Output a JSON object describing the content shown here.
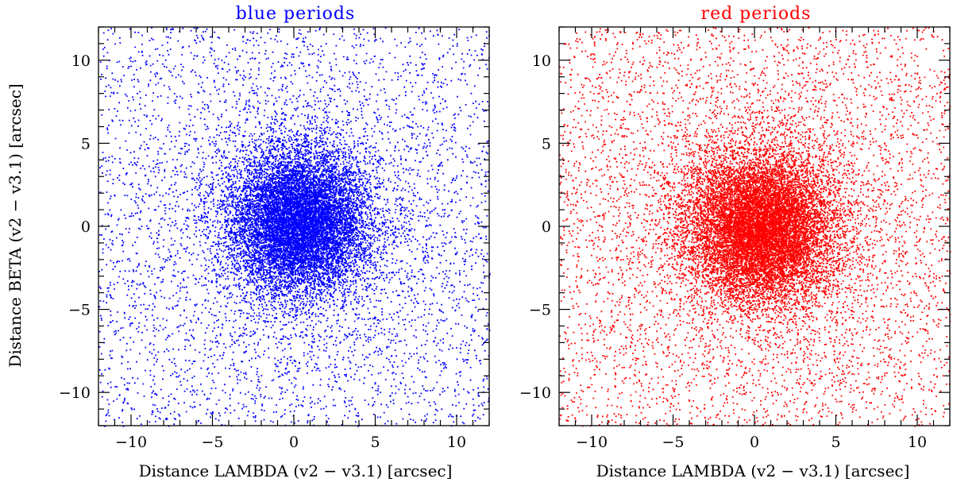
{
  "chart_data": [
    {
      "type": "scatter",
      "title": "blue periods",
      "color": "#0000ff",
      "xlabel": "Distance LAMBDA (v2 − v3.1) [arcsec]",
      "ylabel": "Distance BETA (v2 − v3.1) [arcsec]",
      "xlim": [
        -12,
        12
      ],
      "ylim": [
        -12,
        12
      ],
      "xticks": [
        -10,
        -5,
        0,
        5,
        10
      ],
      "yticks": [
        -10,
        -5,
        0,
        5,
        10
      ],
      "xtick_labels": [
        "−10",
        "−5",
        "0",
        "5",
        "10"
      ],
      "ytick_labels": [
        "−10",
        "−5",
        "0",
        "5",
        "10"
      ],
      "grid": false,
      "distribution": {
        "center": [
          0.3,
          0.3
        ],
        "core_sigma": 2.2,
        "halo_sigma": 7.0,
        "n_points": 16000
      }
    },
    {
      "type": "scatter",
      "title": "red periods",
      "color": "#ff0000",
      "xlabel": "Distance LAMBDA (v2 − v3.1) [arcsec]",
      "xlim": [
        -12,
        12
      ],
      "ylim": [
        -12,
        12
      ],
      "xticks": [
        -10,
        -5,
        0,
        5,
        10
      ],
      "yticks": [
        -10,
        -5,
        0,
        5,
        10
      ],
      "xtick_labels": [
        "−10",
        "−5",
        "0",
        "5",
        "10"
      ],
      "ytick_labels": [
        "−10",
        "−5",
        "0",
        "5",
        "10"
      ],
      "grid": false,
      "distribution": {
        "center": [
          0.3,
          0.0
        ],
        "core_sigma": 2.3,
        "halo_sigma": 7.0,
        "n_points": 18000
      }
    }
  ]
}
